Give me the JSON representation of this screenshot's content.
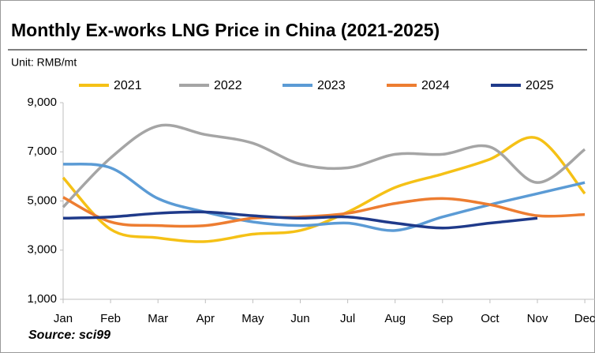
{
  "chart_data": {
    "type": "line",
    "title": "Monthly Ex-works LNG Price in China (2021-2025)",
    "subtitle": "Unit: RMB/mt",
    "source": "Source: sci99",
    "categories": [
      "Jan",
      "Feb",
      "Mar",
      "Apr",
      "May",
      "Jun",
      "Jul",
      "Aug",
      "Sep",
      "Oct",
      "Nov",
      "Dec"
    ],
    "series": [
      {
        "name": "2021",
        "color": "#f5c116",
        "values": [
          5950,
          3850,
          3500,
          3350,
          3650,
          3800,
          4550,
          5550,
          6100,
          6700,
          7550,
          5300
        ]
      },
      {
        "name": "2022",
        "color": "#a5a5a5",
        "values": [
          4750,
          6750,
          8050,
          7700,
          7350,
          6500,
          6350,
          6900,
          6900,
          7200,
          5750,
          7100
        ]
      },
      {
        "name": "2023",
        "color": "#5b9bd5",
        "values": [
          6500,
          6350,
          5100,
          4550,
          4150,
          4000,
          4100,
          3800,
          4350,
          4850,
          5300,
          5750
        ]
      },
      {
        "name": "2024",
        "color": "#ed7d31",
        "values": [
          5150,
          4150,
          4000,
          4000,
          4300,
          4350,
          4500,
          4900,
          5100,
          4850,
          4400,
          4450
        ]
      },
      {
        "name": "2025",
        "color": "#1f3a8a",
        "values": [
          4300,
          4350,
          4500,
          4550,
          4400,
          4300,
          4350,
          4100,
          3900,
          4100,
          4300,
          null
        ]
      }
    ],
    "ylim": [
      1000,
      9000
    ],
    "yticks": [
      {
        "value": 1000,
        "label": "1,000"
      },
      {
        "value": 3000,
        "label": "3,000"
      },
      {
        "value": 5000,
        "label": "5,000"
      },
      {
        "value": 7000,
        "label": "7,000"
      },
      {
        "value": 9000,
        "label": "9,000"
      }
    ],
    "grid": false
  }
}
